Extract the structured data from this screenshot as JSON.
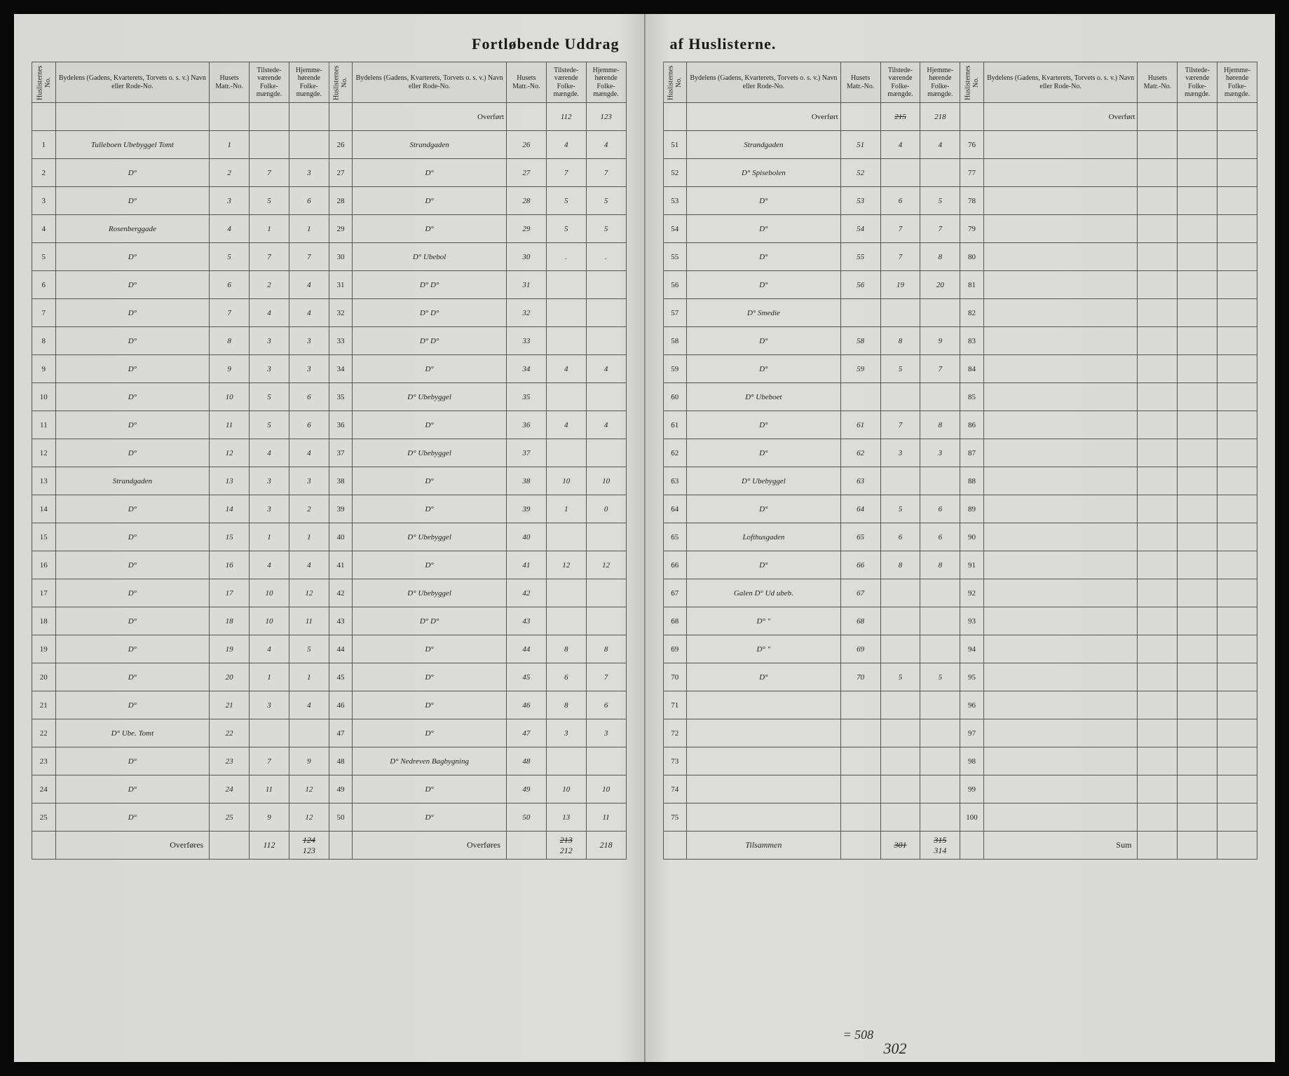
{
  "title_left": "Fortløbende Uddrag",
  "title_right": "af Huslisterne.",
  "headers": {
    "no": "Huslisternes No.",
    "name": "Bydelens (Gadens, Kvarterets, Torvets o. s. v.) Navn eller Rode-No.",
    "matr": "Husets Matr.-No.",
    "tilstede": "Tilstede-værende Folke-mængde.",
    "hjemme": "Hjemme-hørende Folke-mængde."
  },
  "overfort": "Overført",
  "overfores": "Overføres",
  "sum": "Sum",
  "tilsammen": "Tilsammen",
  "page1_overfort_tilstede": "112",
  "page1_overfort_hjemme": "123",
  "block1": [
    {
      "no": "1",
      "name": "Tulleboen Ubebyggel Tomt",
      "matr": "1",
      "t": "",
      "h": ""
    },
    {
      "no": "2",
      "name": "D°",
      "matr": "2",
      "t": "7",
      "h": "3"
    },
    {
      "no": "3",
      "name": "D°",
      "matr": "3",
      "t": "5",
      "h": "6"
    },
    {
      "no": "4",
      "name": "Rosenberggade",
      "matr": "4",
      "t": "1",
      "h": "1"
    },
    {
      "no": "5",
      "name": "D°",
      "matr": "5",
      "t": "7",
      "h": "7"
    },
    {
      "no": "6",
      "name": "D°",
      "matr": "6",
      "t": "2",
      "h": "4"
    },
    {
      "no": "7",
      "name": "D°",
      "matr": "7",
      "t": "4",
      "h": "4"
    },
    {
      "no": "8",
      "name": "D°",
      "matr": "8",
      "t": "3",
      "h": "3"
    },
    {
      "no": "9",
      "name": "D°",
      "matr": "9",
      "t": "3",
      "h": "3"
    },
    {
      "no": "10",
      "name": "D°",
      "matr": "10",
      "t": "5",
      "h": "6"
    },
    {
      "no": "11",
      "name": "D°",
      "matr": "11",
      "t": "5",
      "h": "6"
    },
    {
      "no": "12",
      "name": "D°",
      "matr": "12",
      "t": "4",
      "h": "4"
    },
    {
      "no": "13",
      "name": "Strandgaden",
      "matr": "13",
      "t": "3",
      "h": "3"
    },
    {
      "no": "14",
      "name": "D°",
      "matr": "14",
      "t": "3",
      "h": "2"
    },
    {
      "no": "15",
      "name": "D°",
      "matr": "15",
      "t": "1",
      "h": "1"
    },
    {
      "no": "16",
      "name": "D°",
      "matr": "16",
      "t": "4",
      "h": "4"
    },
    {
      "no": "17",
      "name": "D°",
      "matr": "17",
      "t": "10",
      "h": "12"
    },
    {
      "no": "18",
      "name": "D°",
      "matr": "18",
      "t": "10",
      "h": "11"
    },
    {
      "no": "19",
      "name": "D°",
      "matr": "19",
      "t": "4",
      "h": "5"
    },
    {
      "no": "20",
      "name": "D°",
      "matr": "20",
      "t": "1",
      "h": "1"
    },
    {
      "no": "21",
      "name": "D°",
      "matr": "21",
      "t": "3",
      "h": "4"
    },
    {
      "no": "22",
      "name": "D° Ube. Tomt",
      "matr": "22",
      "t": "",
      "h": ""
    },
    {
      "no": "23",
      "name": "D°",
      "matr": "23",
      "t": "7",
      "h": "9"
    },
    {
      "no": "24",
      "name": "D°",
      "matr": "24",
      "t": "11",
      "h": "12"
    },
    {
      "no": "25",
      "name": "D°",
      "matr": "25",
      "t": "9",
      "h": "12"
    }
  ],
  "block1_sum_t": "112",
  "block1_sum_h": "124",
  "block1_sum_h2": "123",
  "block2": [
    {
      "no": "26",
      "name": "Strandgaden",
      "matr": "26",
      "t": "4",
      "h": "4"
    },
    {
      "no": "27",
      "name": "D°",
      "matr": "27",
      "t": "7",
      "h": "7"
    },
    {
      "no": "28",
      "name": "D°",
      "matr": "28",
      "t": "5",
      "h": "5"
    },
    {
      "no": "29",
      "name": "D°",
      "matr": "29",
      "t": "5",
      "h": "5"
    },
    {
      "no": "30",
      "name": "D° Ubebol",
      "matr": "30",
      "t": ".",
      "h": "."
    },
    {
      "no": "31",
      "name": "D°   D°",
      "matr": "31",
      "t": "",
      "h": ""
    },
    {
      "no": "32",
      "name": "D°   D°",
      "matr": "32",
      "t": "",
      "h": ""
    },
    {
      "no": "33",
      "name": "D°   D°",
      "matr": "33",
      "t": "",
      "h": ""
    },
    {
      "no": "34",
      "name": "D°",
      "matr": "34",
      "t": "4",
      "h": "4"
    },
    {
      "no": "35",
      "name": "D° Ubebyggel",
      "matr": "35",
      "t": "",
      "h": ""
    },
    {
      "no": "36",
      "name": "D°",
      "matr": "36",
      "t": "4",
      "h": "4"
    },
    {
      "no": "37",
      "name": "D° Ubebyggel",
      "matr": "37",
      "t": "",
      "h": ""
    },
    {
      "no": "38",
      "name": "D°",
      "matr": "38",
      "t": "10",
      "h": "10"
    },
    {
      "no": "39",
      "name": "D°",
      "matr": "39",
      "t": "1",
      "h": "0"
    },
    {
      "no": "40",
      "name": "D° Ubebyggel",
      "matr": "40",
      "t": "",
      "h": ""
    },
    {
      "no": "41",
      "name": "D°",
      "matr": "41",
      "t": "12",
      "h": "12"
    },
    {
      "no": "42",
      "name": "D° Ubebyggel",
      "matr": "42",
      "t": "",
      "h": ""
    },
    {
      "no": "43",
      "name": "D°   D°",
      "matr": "43",
      "t": "",
      "h": ""
    },
    {
      "no": "44",
      "name": "D°",
      "matr": "44",
      "t": "8",
      "h": "8"
    },
    {
      "no": "45",
      "name": "D°",
      "matr": "45",
      "t": "6",
      "h": "7"
    },
    {
      "no": "46",
      "name": "D°",
      "matr": "46",
      "t": "8",
      "h": "6"
    },
    {
      "no": "47",
      "name": "D°",
      "matr": "47",
      "t": "3",
      "h": "3"
    },
    {
      "no": "48",
      "name": "D° Nedreven Bagbygning",
      "matr": "48",
      "t": "",
      "h": ""
    },
    {
      "no": "49",
      "name": "D°",
      "matr": "49",
      "t": "10",
      "h": "10"
    },
    {
      "no": "50",
      "name": "D°",
      "matr": "50",
      "t": "13",
      "h": "11"
    }
  ],
  "block2_sum_t": "213",
  "block2_sum_t2": "212",
  "block2_sum_h": "218",
  "page2_overfort_t": "215",
  "page2_overfort_h": "218",
  "block3": [
    {
      "no": "51",
      "name": "Strandgaden",
      "matr": "51",
      "t": "4",
      "h": "4"
    },
    {
      "no": "52",
      "name": "D° Spisebolen",
      "matr": "52",
      "t": "",
      "h": ""
    },
    {
      "no": "53",
      "name": "D°",
      "matr": "53",
      "t": "6",
      "h": "5"
    },
    {
      "no": "54",
      "name": "D°",
      "matr": "54",
      "t": "7",
      "h": "7"
    },
    {
      "no": "55",
      "name": "D°",
      "matr": "55",
      "t": "7",
      "h": "8"
    },
    {
      "no": "56",
      "name": "D°",
      "matr": "56",
      "t": "19",
      "h": "20"
    },
    {
      "no": "57",
      "name": "D° Smedie",
      "matr": "",
      "t": "",
      "h": ""
    },
    {
      "no": "58",
      "name": "D°",
      "matr": "58",
      "t": "8",
      "h": "9"
    },
    {
      "no": "59",
      "name": "D°",
      "matr": "59",
      "t": "5",
      "h": "7"
    },
    {
      "no": "60",
      "name": "D° Ubeboet",
      "matr": "",
      "t": "",
      "h": ""
    },
    {
      "no": "61",
      "name": "D°",
      "matr": "61",
      "t": "7",
      "h": "8"
    },
    {
      "no": "62",
      "name": "D°",
      "matr": "62",
      "t": "3",
      "h": "3"
    },
    {
      "no": "63",
      "name": "D° Ubebyggel",
      "matr": "63",
      "t": "",
      "h": ""
    },
    {
      "no": "64",
      "name": "D°",
      "matr": "64",
      "t": "5",
      "h": "6"
    },
    {
      "no": "65",
      "name": "Lofthusgaden",
      "matr": "65",
      "t": "6",
      "h": "6"
    },
    {
      "no": "66",
      "name": "D°",
      "matr": "66",
      "t": "8",
      "h": "8"
    },
    {
      "no": "67",
      "name": "Galen D° Ud ubeb.",
      "matr": "67",
      "t": "",
      "h": ""
    },
    {
      "no": "68",
      "name": "D°   \"",
      "matr": "68",
      "t": "",
      "h": ""
    },
    {
      "no": "69",
      "name": "D°   \"",
      "matr": "69",
      "t": "",
      "h": ""
    },
    {
      "no": "70",
      "name": "D°",
      "matr": "70",
      "t": "5",
      "h": "5"
    },
    {
      "no": "71",
      "name": "",
      "matr": "",
      "t": "",
      "h": ""
    },
    {
      "no": "72",
      "name": "",
      "matr": "",
      "t": "",
      "h": ""
    },
    {
      "no": "73",
      "name": "",
      "matr": "",
      "t": "",
      "h": ""
    },
    {
      "no": "74",
      "name": "",
      "matr": "",
      "t": "",
      "h": ""
    },
    {
      "no": "75",
      "name": "",
      "matr": "",
      "t": "",
      "h": ""
    }
  ],
  "block3_sum_t": "301",
  "block3_sum_h": "315",
  "block3_extra1": "= 508",
  "block3_extra2": "314",
  "block3_extra3": "302",
  "block4": [
    {
      "no": "76"
    },
    {
      "no": "77"
    },
    {
      "no": "78"
    },
    {
      "no": "79"
    },
    {
      "no": "80"
    },
    {
      "no": "81"
    },
    {
      "no": "82"
    },
    {
      "no": "83"
    },
    {
      "no": "84"
    },
    {
      "no": "85"
    },
    {
      "no": "86"
    },
    {
      "no": "87"
    },
    {
      "no": "88"
    },
    {
      "no": "89"
    },
    {
      "no": "90"
    },
    {
      "no": "91"
    },
    {
      "no": "92"
    },
    {
      "no": "93"
    },
    {
      "no": "94"
    },
    {
      "no": "95"
    },
    {
      "no": "96"
    },
    {
      "no": "97"
    },
    {
      "no": "98"
    },
    {
      "no": "99"
    },
    {
      "no": "100"
    }
  ]
}
